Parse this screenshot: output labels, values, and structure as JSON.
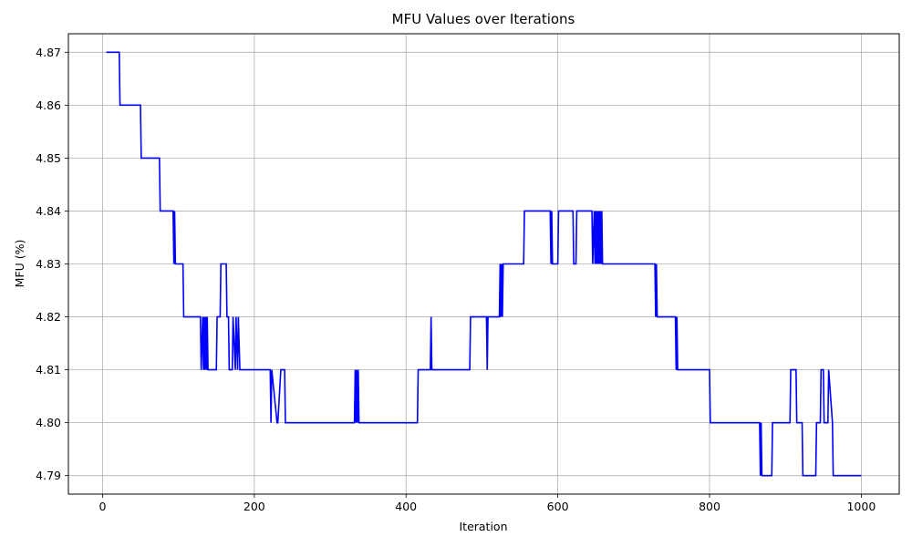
{
  "chart_data": {
    "type": "line",
    "title": "MFU Values over Iterations",
    "xlabel": "Iteration",
    "ylabel": "MFU (%)",
    "xlim": [
      -45,
      1050
    ],
    "ylim": [
      4.7865,
      4.8735
    ],
    "xticks": [
      0,
      200,
      400,
      600,
      800,
      1000
    ],
    "yticks": [
      4.79,
      4.8,
      4.81,
      4.82,
      4.83,
      4.84,
      4.85,
      4.86,
      4.87
    ],
    "ytick_decimals": 2,
    "grid": true,
    "line_color": "#0000ff",
    "series": [
      {
        "values_note": "",
        "x": [
          5,
          22,
          23,
          50,
          51,
          75,
          76,
          93,
          94,
          95,
          96,
          97,
          106,
          107,
          129,
          130,
          132,
          133,
          134,
          135,
          136,
          137,
          138,
          139,
          140,
          150,
          151,
          155,
          156,
          163,
          164,
          166,
          167,
          171,
          172,
          175,
          176,
          178,
          179,
          181,
          182,
          221,
          222,
          223,
          230,
          231,
          235,
          236,
          240,
          241,
          332,
          333,
          334,
          335,
          336,
          337,
          338,
          339,
          415,
          416,
          432,
          433,
          434,
          435,
          484,
          485,
          506,
          507,
          508,
          509,
          523,
          524,
          525,
          526,
          527,
          528,
          555,
          556,
          590,
          591,
          592,
          593,
          600,
          601,
          620,
          621,
          624,
          625,
          645,
          646,
          648,
          649,
          650,
          651,
          652,
          653,
          654,
          655,
          656,
          657,
          658,
          659,
          660,
          661,
          728,
          729,
          730,
          731,
          755,
          756,
          757,
          758,
          800,
          801,
          866,
          867,
          868,
          869,
          882,
          883,
          906,
          907,
          914,
          915,
          922,
          923,
          940,
          941,
          946,
          947,
          950,
          951,
          956,
          957,
          962,
          963,
          1000
        ],
        "y": [
          4.87,
          4.87,
          4.86,
          4.86,
          4.85,
          4.85,
          4.84,
          4.84,
          4.83,
          4.84,
          4.83,
          4.83,
          4.83,
          4.82,
          4.82,
          4.81,
          4.82,
          4.81,
          4.82,
          4.81,
          4.82,
          4.81,
          4.82,
          4.81,
          4.81,
          4.81,
          4.82,
          4.82,
          4.83,
          4.83,
          4.82,
          4.82,
          4.81,
          4.81,
          4.82,
          4.81,
          4.82,
          4.81,
          4.82,
          4.81,
          4.81,
          4.81,
          4.8,
          4.81,
          4.8,
          4.8,
          4.81,
          4.81,
          4.81,
          4.8,
          4.8,
          4.81,
          4.8,
          4.81,
          4.8,
          4.81,
          4.8,
          4.8,
          4.8,
          4.81,
          4.81,
          4.82,
          4.81,
          4.81,
          4.81,
          4.82,
          4.82,
          4.81,
          4.82,
          4.82,
          4.82,
          4.83,
          4.82,
          4.83,
          4.82,
          4.83,
          4.83,
          4.84,
          4.84,
          4.83,
          4.84,
          4.83,
          4.83,
          4.84,
          4.84,
          4.83,
          4.83,
          4.84,
          4.84,
          4.83,
          4.84,
          4.83,
          4.84,
          4.83,
          4.84,
          4.83,
          4.84,
          4.83,
          4.84,
          4.83,
          4.84,
          4.83,
          4.83,
          4.83,
          4.83,
          4.82,
          4.83,
          4.82,
          4.82,
          4.81,
          4.82,
          4.81,
          4.81,
          4.8,
          4.8,
          4.79,
          4.8,
          4.79,
          4.79,
          4.8,
          4.8,
          4.81,
          4.81,
          4.8,
          4.8,
          4.79,
          4.79,
          4.8,
          4.8,
          4.81,
          4.81,
          4.8,
          4.8,
          4.81,
          4.8,
          4.79,
          4.79
        ]
      }
    ]
  }
}
